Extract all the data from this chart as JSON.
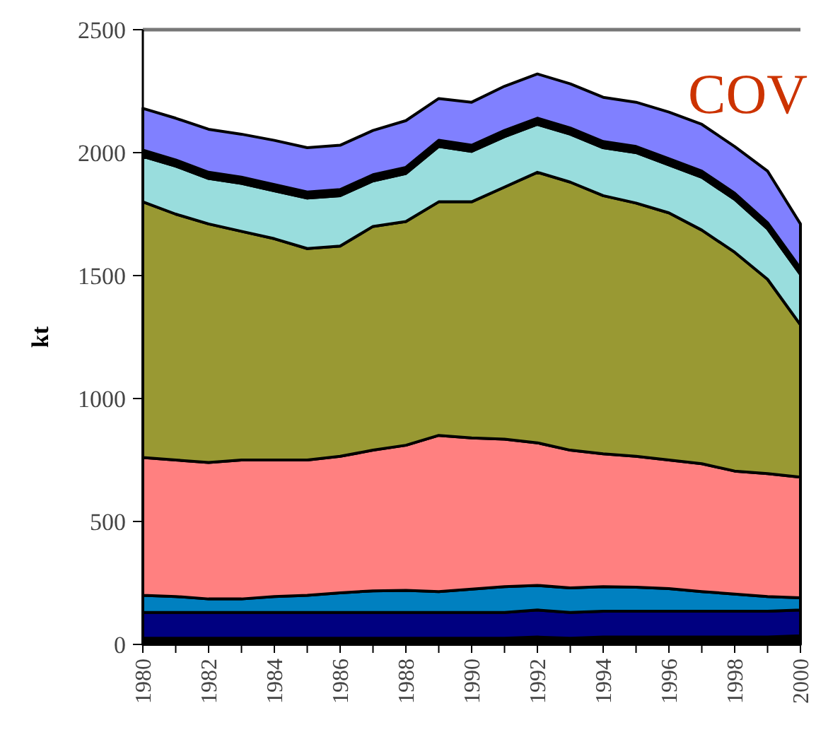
{
  "chart_data": {
    "type": "area",
    "stacked": true,
    "ylabel": "kt",
    "annotations": [
      "COV"
    ],
    "x": [
      1980,
      1981,
      1982,
      1983,
      1984,
      1985,
      1986,
      1987,
      1988,
      1989,
      1990,
      1991,
      1992,
      1993,
      1994,
      1995,
      1996,
      1997,
      1998,
      1999,
      2000
    ],
    "xlim": [
      1980,
      2000
    ],
    "xticks": [
      1980,
      {
        "value": 1981,
        "label": null
      },
      1982,
      {
        "value": 1983,
        "label": null
      },
      1984,
      {
        "value": 1985,
        "label": null
      },
      1986,
      {
        "value": 1987,
        "label": null
      },
      1988,
      {
        "value": 1989,
        "label": null
      },
      1990,
      {
        "value": 1991,
        "label": null
      },
      1992,
      {
        "value": 1993,
        "label": null
      },
      1994,
      {
        "value": 1995,
        "label": null
      },
      1996,
      {
        "value": 1997,
        "label": null
      },
      1998,
      {
        "value": 1999,
        "label": null
      },
      2000
    ],
    "ylim": [
      0,
      2500
    ],
    "yticks": [
      0,
      500,
      1000,
      1500,
      2000,
      2500
    ],
    "grid": false,
    "series": [
      {
        "color": "#000000",
        "values": [
          25,
          25,
          25,
          25,
          25,
          25,
          25,
          25,
          25,
          25,
          25,
          25,
          25,
          25,
          25,
          25,
          25,
          25,
          25,
          25,
          25
        ]
      },
      {
        "color": "#ff00ff",
        "values": [
          0,
          0,
          0,
          0,
          0,
          0,
          0,
          0,
          0,
          0,
          0,
          0,
          5,
          0,
          5,
          5,
          5,
          5,
          5,
          5,
          10
        ]
      },
      {
        "color": "#000080",
        "values": [
          105,
          105,
          105,
          105,
          105,
          105,
          105,
          105,
          105,
          105,
          105,
          105,
          110,
          105,
          105,
          105,
          105,
          105,
          105,
          105,
          105
        ]
      },
      {
        "color": "#0080c0",
        "values": [
          70,
          65,
          55,
          55,
          65,
          70,
          80,
          88,
          90,
          85,
          95,
          105,
          100,
          100,
          100,
          98,
          92,
          80,
          70,
          60,
          50
        ]
      },
      {
        "color": "#ff8080",
        "values": [
          560,
          555,
          555,
          565,
          555,
          550,
          555,
          572,
          590,
          635,
          615,
          600,
          580,
          560,
          540,
          532,
          523,
          520,
          500,
          500,
          490
        ]
      },
      {
        "color": "#999933",
        "values": [
          1040,
          1000,
          970,
          930,
          900,
          860,
          855,
          910,
          910,
          950,
          960,
          1025,
          1100,
          1090,
          1050,
          1030,
          1005,
          950,
          890,
          790,
          620
        ]
      },
      {
        "color": "#99dddd",
        "values": [
          185,
          195,
          185,
          195,
          195,
          205,
          205,
          185,
          195,
          225,
          205,
          205,
          195,
          195,
          195,
          205,
          195,
          215,
          215,
          205,
          205
        ]
      },
      {
        "color": "#000000",
        "values": [
          25,
          25,
          25,
          25,
          25,
          25,
          25,
          25,
          25,
          25,
          25,
          25,
          25,
          25,
          25,
          25,
          25,
          25,
          25,
          25,
          25
        ]
      },
      {
        "color": "#8080ff",
        "values": [
          170,
          170,
          175,
          175,
          180,
          180,
          180,
          180,
          190,
          170,
          175,
          180,
          180,
          180,
          180,
          180,
          190,
          190,
          190,
          210,
          180
        ]
      }
    ]
  }
}
